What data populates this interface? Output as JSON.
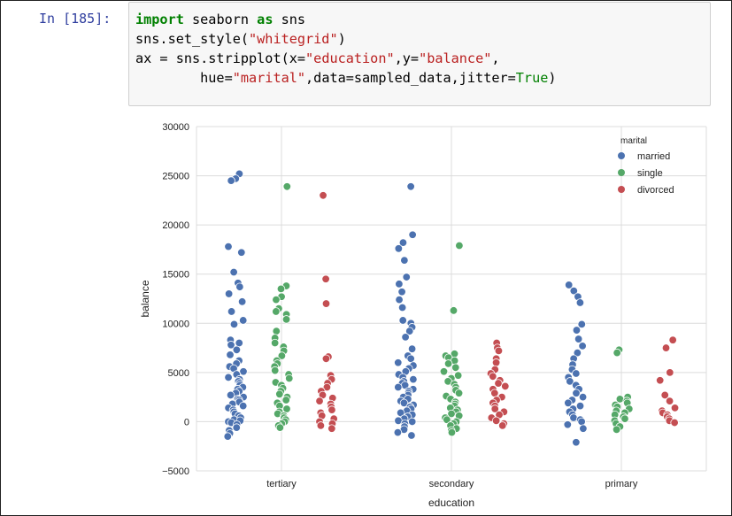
{
  "cell": {
    "prompt": "In [185]:",
    "code_lines": [
      [
        {
          "t": "import",
          "c": "kw"
        },
        {
          "t": " seaborn "
        },
        {
          "t": "as",
          "c": "kw"
        },
        {
          "t": " sns"
        }
      ],
      [
        {
          "t": "sns.set_style("
        },
        {
          "t": "\"whitegrid\"",
          "c": "str"
        },
        {
          "t": ")"
        }
      ],
      [
        {
          "t": "ax = sns.stripplot(x="
        },
        {
          "t": "\"education\"",
          "c": "str"
        },
        {
          "t": ",y="
        },
        {
          "t": "\"balance\"",
          "c": "str"
        },
        {
          "t": ","
        }
      ],
      [
        {
          "t": "        hue="
        },
        {
          "t": "\"marital\"",
          "c": "str"
        },
        {
          "t": ",data=sampled_data,jitter="
        },
        {
          "t": "True",
          "c": "bi"
        },
        {
          "t": ")"
        }
      ]
    ]
  },
  "colors": {
    "married": "#4c72b0",
    "single": "#55a868",
    "divorced": "#c44e52",
    "grid": "#dcdcdc",
    "prompt": "#303f9f"
  },
  "chart_data": {
    "type": "scatter",
    "style": "stripplot",
    "xlabel": "education",
    "ylabel": "balance",
    "categories": [
      "tertiary",
      "secondary",
      "primary"
    ],
    "ylim": [
      -5000,
      30000
    ],
    "yticks": [
      -5000,
      0,
      5000,
      10000,
      15000,
      20000,
      25000,
      30000
    ],
    "grid": true,
    "legend": {
      "title": "marital",
      "placement": "top-right",
      "entries": [
        "married",
        "single",
        "divorced"
      ]
    },
    "series": [
      {
        "name": "married",
        "points": {
          "tertiary": [
            25200,
            24700,
            24500,
            17800,
            17200,
            15200,
            14100,
            13700,
            13000,
            12200,
            11200,
            10300,
            9900,
            8300,
            8000,
            7800,
            7300,
            6800,
            6200,
            5900,
            5600,
            5400,
            5100,
            4800,
            4500,
            4300,
            4100,
            3900,
            3700,
            3500,
            3300,
            3100,
            2900,
            2700,
            2500,
            2300,
            2200,
            2000,
            1800,
            1600,
            1400,
            1200,
            1000,
            800,
            600,
            400,
            200,
            100,
            0,
            -100,
            -300,
            -600,
            -900,
            -1200,
            -1500
          ],
          "secondary": [
            23900,
            19000,
            18200,
            17600,
            16400,
            14700,
            14000,
            13200,
            12400,
            11600,
            10300,
            10000,
            9600,
            9200,
            8600,
            7400,
            6700,
            6400,
            6000,
            5700,
            5400,
            5100,
            4800,
            4500,
            4300,
            4100,
            3900,
            3700,
            3500,
            3300,
            3100,
            2900,
            2700,
            2500,
            2300,
            2100,
            1900,
            1700,
            1500,
            1300,
            1100,
            900,
            700,
            500,
            300,
            100,
            0,
            -200,
            -500,
            -800,
            -1100,
            -1400
          ],
          "primary": [
            13900,
            13300,
            12700,
            12100,
            9900,
            9300,
            8400,
            7700,
            7000,
            6400,
            5800,
            5300,
            4900,
            4500,
            4100,
            3700,
            3300,
            2900,
            2500,
            2200,
            1900,
            1600,
            1300,
            1000,
            700,
            400,
            200,
            0,
            -300,
            -700,
            -2100
          ]
        }
      },
      {
        "name": "single",
        "points": {
          "tertiary": [
            23900,
            13800,
            13500,
            12700,
            12400,
            11500,
            11200,
            10900,
            10400,
            9200,
            8500,
            8000,
            7600,
            7200,
            6700,
            6200,
            5900,
            5600,
            5200,
            4800,
            4400,
            4000,
            3700,
            3400,
            3100,
            2800,
            2500,
            2200,
            1900,
            1600,
            1300,
            1000,
            800,
            600,
            400,
            200,
            0,
            -200,
            -400,
            -600
          ],
          "secondary": [
            17900,
            11300,
            6900,
            6700,
            6500,
            6200,
            5900,
            5500,
            5100,
            4700,
            4400,
            4100,
            3800,
            3500,
            3200,
            2900,
            2600,
            2300,
            2000,
            1800,
            1600,
            1400,
            1200,
            1000,
            800,
            600,
            400,
            200,
            0,
            -200,
            -400,
            -700,
            -900,
            -1100
          ],
          "primary": [
            7300,
            7000,
            2500,
            2300,
            2100,
            1900,
            1700,
            1500,
            1300,
            1100,
            900,
            700,
            500,
            300,
            100,
            -200,
            -500,
            -800
          ]
        }
      },
      {
        "name": "divorced",
        "points": {
          "tertiary": [
            23000,
            14500,
            12000,
            6600,
            6400,
            4700,
            4300,
            3900,
            3500,
            3100,
            2700,
            2400,
            2100,
            1800,
            1500,
            1200,
            900,
            600,
            300,
            0,
            -200,
            -400,
            -700
          ],
          "secondary": [
            8000,
            7500,
            7200,
            6400,
            6000,
            5300,
            4900,
            4600,
            4200,
            3900,
            3600,
            3300,
            2900,
            2500,
            2200,
            1900,
            1600,
            1300,
            1000,
            700,
            400,
            100,
            -200,
            -400
          ],
          "primary": [
            8300,
            7500,
            5000,
            4200,
            2700,
            2100,
            1400,
            1100,
            900,
            700,
            500,
            300,
            100,
            -100
          ]
        }
      }
    ]
  }
}
